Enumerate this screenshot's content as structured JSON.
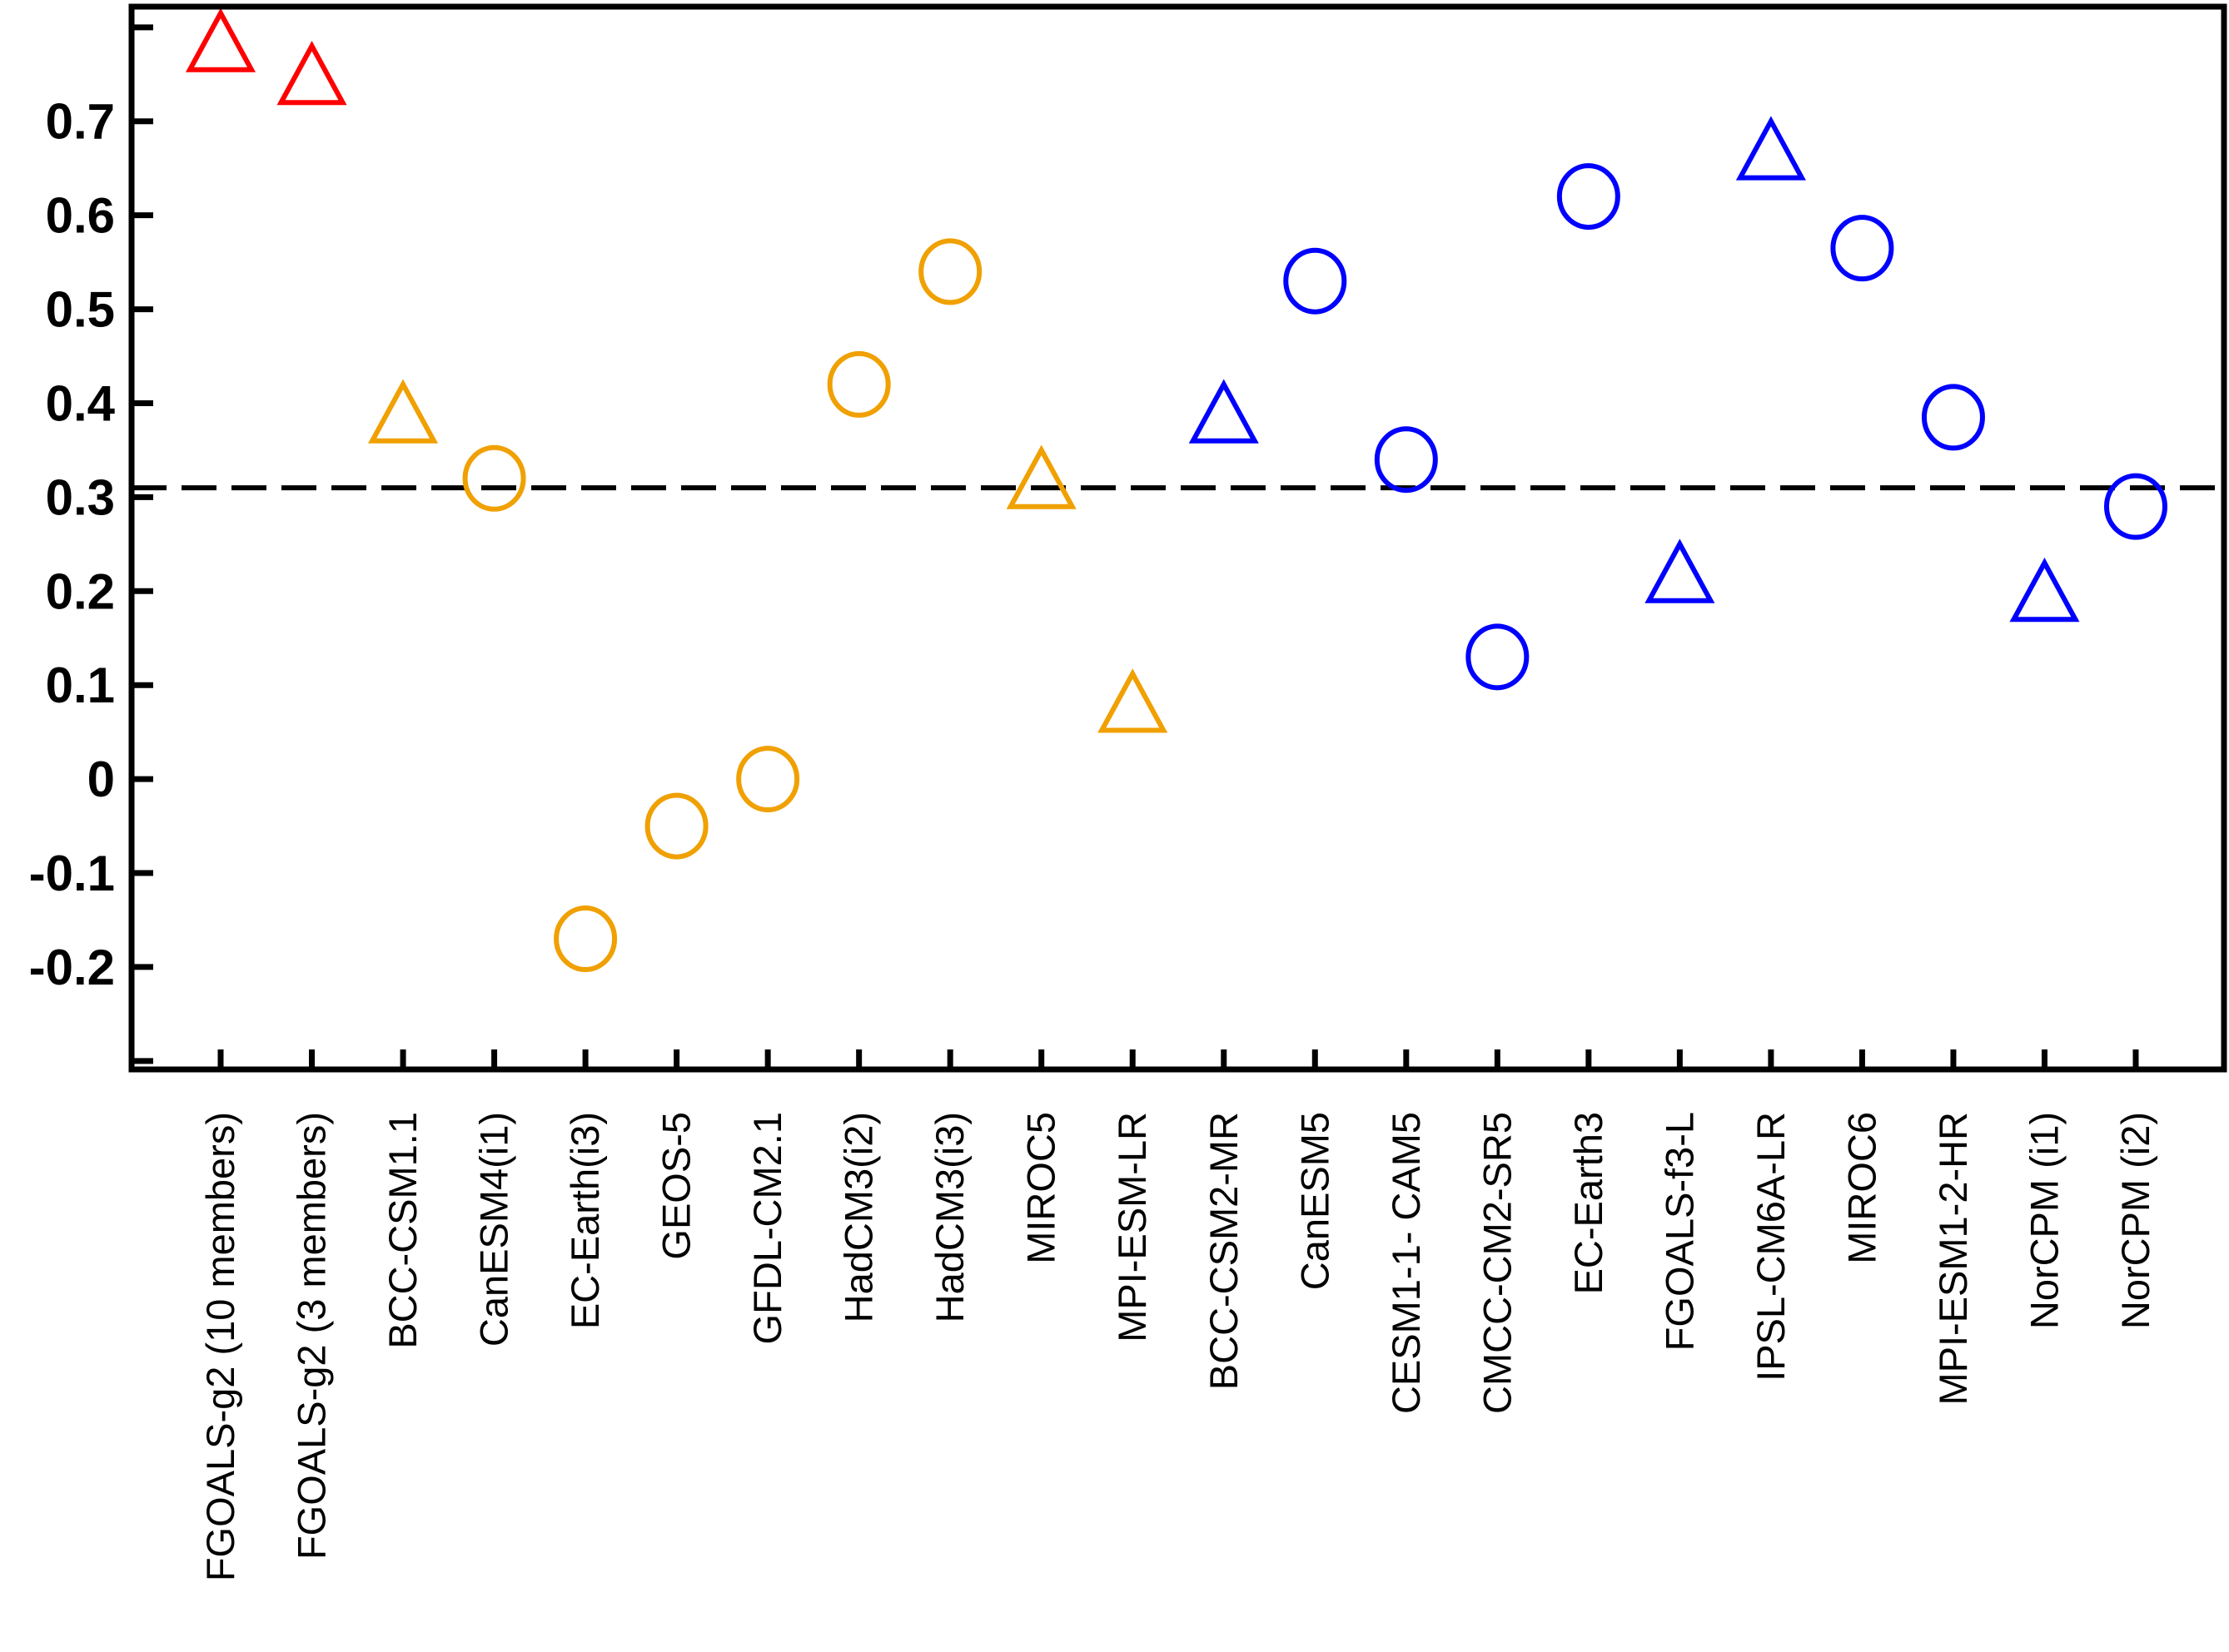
{
  "chart_data": {
    "type": "scatter",
    "title": "",
    "xlabel": "",
    "ylabel": "",
    "grid": false,
    "background_color": "#ffffff",
    "axis_color": "#000000",
    "y_axis": {
      "ylim": [
        -0.309,
        0.822
      ],
      "tick_values": [
        0.7,
        0.6,
        0.5,
        0.4,
        0.3,
        0.2,
        0.1,
        0.0,
        -0.1,
        -0.2
      ],
      "tick_labels": [
        "0.7",
        "0.6",
        "0.5",
        "0.4",
        "0.3",
        "0.2",
        "0.1",
        "0",
        "-0.1",
        "-0.2"
      ],
      "unlabeled_tick_values": [
        0.8,
        -0.3
      ]
    },
    "reference_line": {
      "value": 0.31,
      "style": "dashed",
      "color": "#000000"
    },
    "marker_colors": {
      "red": "#FF0000",
      "orange": "#F0A000",
      "blue": "#0000FF"
    },
    "categories": [
      "FGOALS-g2 (10 members)",
      "FGOALS-g2 (3 members)",
      "BCC-CSM1.1",
      "CanESM4(i1)",
      "EC-Earth(i3)",
      "GEOS-5",
      "GFDL-CM2.1",
      "HadCM3(i2)",
      "HadCM3(i3)",
      "MIROC5",
      "MPI-ESM-LR",
      "BCC-CSM2-MR",
      "CanESM5",
      "CESM1-1- CAM5",
      "CMCC-CM2-SR5",
      "EC-Earth3",
      "FGOALS-f3-L",
      "IPSL-CM6A-LR",
      "MIROC6",
      "MPI-ESM1-2-HR",
      "NorCPM (i1)",
      "NorCPM (i2)"
    ],
    "points": [
      {
        "label": "FGOALS-g2 (10 members)",
        "value": 0.785,
        "marker": "triangle",
        "color": "#FF0000"
      },
      {
        "label": "FGOALS-g2 (3 members)",
        "value": 0.75,
        "marker": "triangle",
        "color": "#FF0000"
      },
      {
        "label": "BCC-CSM1.1",
        "value": 0.39,
        "marker": "triangle",
        "color": "#F0A000"
      },
      {
        "label": "CanESM4(i1)",
        "value": 0.32,
        "marker": "circle",
        "color": "#F0A000"
      },
      {
        "label": "EC-Earth(i3)",
        "value": -0.17,
        "marker": "circle",
        "color": "#F0A000"
      },
      {
        "label": "GEOS-5",
        "value": -0.05,
        "marker": "circle",
        "color": "#F0A000"
      },
      {
        "label": "GFDL-CM2.1",
        "value": 0.0,
        "marker": "circle",
        "color": "#F0A000"
      },
      {
        "label": "HadCM3(i2)",
        "value": 0.42,
        "marker": "circle",
        "color": "#F0A000"
      },
      {
        "label": "HadCM3(i3)",
        "value": 0.54,
        "marker": "circle",
        "color": "#F0A000"
      },
      {
        "label": "MIROC5",
        "value": 0.32,
        "marker": "triangle",
        "color": "#F0A000"
      },
      {
        "label": "MPI-ESM-LR",
        "value": 0.082,
        "marker": "triangle",
        "color": "#F0A000"
      },
      {
        "label": "BCC-CSM2-MR",
        "value": 0.39,
        "marker": "triangle",
        "color": "#0000FF"
      },
      {
        "label": "CanESM5",
        "value": 0.53,
        "marker": "circle",
        "color": "#0000FF"
      },
      {
        "label": "CESM1-1- CAM5",
        "value": 0.34,
        "marker": "circle",
        "color": "#0000FF"
      },
      {
        "label": "CMCC-CM2-SR5",
        "value": 0.13,
        "marker": "circle",
        "color": "#0000FF"
      },
      {
        "label": "EC-Earth3",
        "value": 0.62,
        "marker": "circle",
        "color": "#0000FF"
      },
      {
        "label": "FGOALS-f3-L",
        "value": 0.22,
        "marker": "triangle",
        "color": "#0000FF"
      },
      {
        "label": "IPSL-CM6A-LR",
        "value": 0.67,
        "marker": "triangle",
        "color": "#0000FF"
      },
      {
        "label": "MIROC6",
        "value": 0.565,
        "marker": "circle",
        "color": "#0000FF"
      },
      {
        "label": "MPI-ESM1-2-HR",
        "value": 0.385,
        "marker": "circle",
        "color": "#0000FF"
      },
      {
        "label": "NorCPM (i1)",
        "value": 0.2,
        "marker": "triangle",
        "color": "#0000FF"
      },
      {
        "label": "NorCPM (i2)",
        "value": 0.29,
        "marker": "circle",
        "color": "#0000FF"
      }
    ]
  }
}
